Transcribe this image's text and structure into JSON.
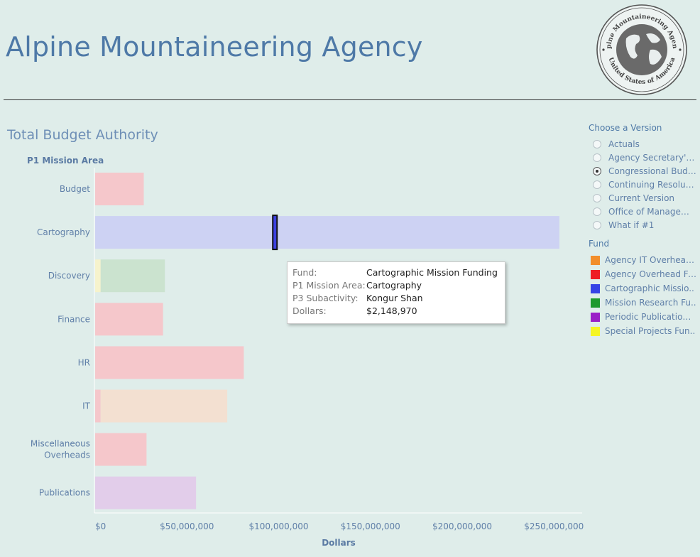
{
  "header": {
    "title": "Alpine Mountaineering Agency",
    "logo_text_top": "Alpine Mountaineering Agency",
    "logo_text_bottom": "United States of America"
  },
  "section": {
    "title": "Total Budget Authority",
    "row_header": "P1 Mission Area"
  },
  "chart_data": {
    "type": "bar",
    "orientation": "horizontal",
    "stacked": true,
    "title": "Total Budget Authority",
    "xlabel": "Dollars",
    "ylabel": "P1 Mission Area",
    "xlim": [
      0,
      265000000
    ],
    "x_ticks": [
      {
        "value": 0,
        "label": "$0"
      },
      {
        "value": 50000000,
        "label": "$50,000,000"
      },
      {
        "value": 100000000,
        "label": "$100,000,000"
      },
      {
        "value": 150000000,
        "label": "$150,000,000"
      },
      {
        "value": 200000000,
        "label": "$200,000,000"
      },
      {
        "value": 250000000,
        "label": "$250,000,000"
      }
    ],
    "categories": [
      "Budget",
      "Cartography",
      "Discovery",
      "Finance",
      "HR",
      "IT",
      "Miscellaneous|Overheads",
      "Publications"
    ],
    "series": [
      {
        "name": "Agency Overhead Fu..",
        "color": "#f5c7cb",
        "values": [
          26500000,
          0,
          0,
          37000000,
          81000000,
          3000000,
          28000000,
          0
        ]
      },
      {
        "name": "Special Projects Fun..",
        "color": "#f6f3cc",
        "values": [
          0,
          0,
          3000000,
          0,
          0,
          0,
          0,
          0
        ]
      },
      {
        "name": "Mission Research Fu..",
        "color": "#cbe3cf",
        "values": [
          0,
          0,
          35000000,
          0,
          0,
          0,
          0,
          0
        ]
      },
      {
        "name": "Agency IT Overhead ..",
        "color": "#f3e0d1",
        "values": [
          0,
          0,
          0,
          0,
          0,
          69000000,
          0,
          0
        ]
      },
      {
        "name": "Cartographic Missio..",
        "color": "#cdd2f3",
        "values": [
          0,
          253000000,
          0,
          0,
          0,
          0,
          0,
          0
        ]
      },
      {
        "name": "Periodic Publications..",
        "color": "#e2cdea",
        "values": [
          0,
          0,
          0,
          0,
          0,
          0,
          0,
          55000000
        ]
      }
    ],
    "highlight": {
      "category": "Cartography",
      "start": 96800000,
      "value": 2148970,
      "color": "#3c40e0"
    }
  },
  "tooltip": {
    "rows": [
      {
        "key": "Fund:",
        "value": "Cartographic Mission Funding"
      },
      {
        "key": "P1 Mission Area:",
        "value": "Cartography"
      },
      {
        "key": "P3 Subactivity:",
        "value": "Kongur Shan"
      },
      {
        "key": "Dollars:",
        "value": "$2,148,970"
      }
    ]
  },
  "version_filter": {
    "title": "Choose a Version",
    "options": [
      {
        "label": "Actuals",
        "selected": false
      },
      {
        "label": "Agency Secretary's ...",
        "selected": false
      },
      {
        "label": "Congressional Budg...",
        "selected": true
      },
      {
        "label": "Continuing Resoluti...",
        "selected": false
      },
      {
        "label": "Current Version",
        "selected": false
      },
      {
        "label": "Office of Managem...",
        "selected": false
      },
      {
        "label": "What if #1",
        "selected": false
      }
    ]
  },
  "fund_legend": {
    "title": "Fund",
    "items": [
      {
        "label": "Agency IT Overhead ..",
        "color": "#f28e2b"
      },
      {
        "label": "Agency Overhead Fu..",
        "color": "#ee1c24"
      },
      {
        "label": "Cartographic Missio..",
        "color": "#3643e6"
      },
      {
        "label": "Mission Research Fu..",
        "color": "#1e9a2e"
      },
      {
        "label": "Periodic Publications..",
        "color": "#9a1fc7"
      },
      {
        "label": "Special Projects Fun..",
        "color": "#f5f523"
      }
    ]
  }
}
